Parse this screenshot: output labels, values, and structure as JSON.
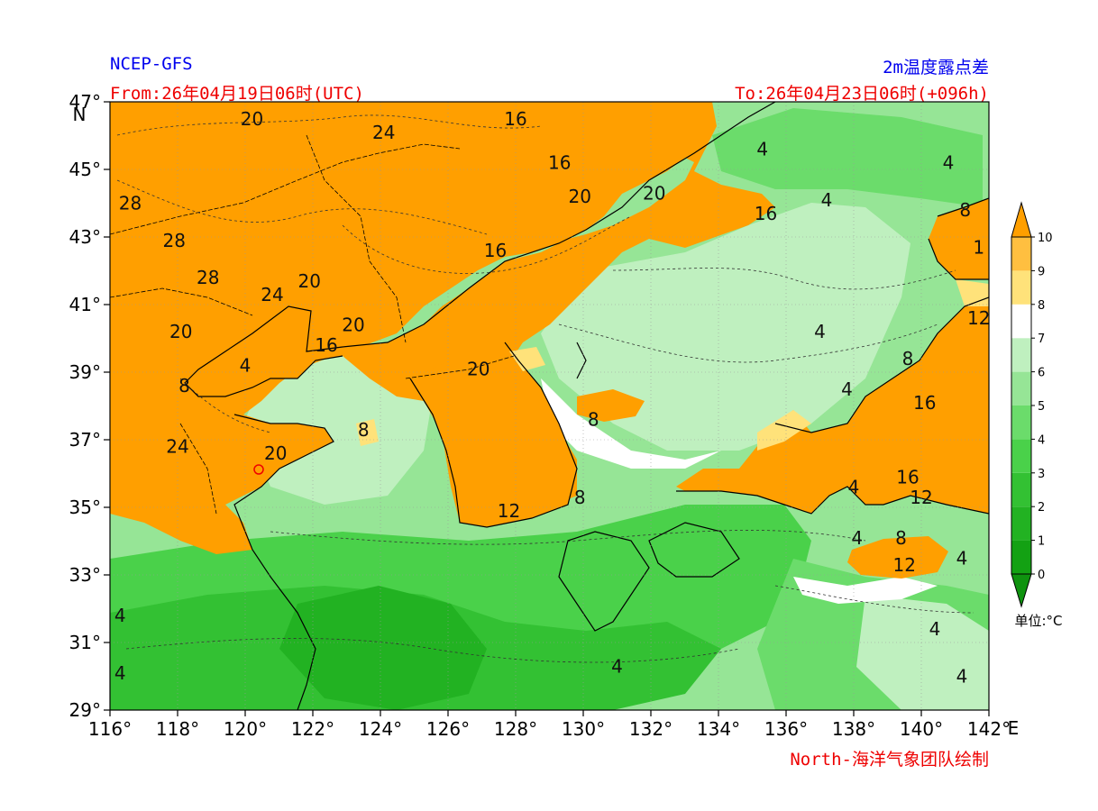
{
  "header": {
    "model": "NCEP-GFS",
    "from": "From:26年04月19日06时(UTC)",
    "variable": "2m温度露点差",
    "to": "To:26年04月23日06时(+096h)"
  },
  "footer": {
    "credit": "North-海洋气象团队绘制"
  },
  "map": {
    "lon_range": [
      116,
      142
    ],
    "lat_range": [
      29,
      47
    ],
    "lon_ticks": [
      "116°",
      "118°",
      "120°",
      "122°",
      "124°",
      "126°",
      "128°",
      "130°",
      "132°",
      "134°",
      "136°",
      "138°",
      "140°",
      "142°"
    ],
    "lon_tick_values": [
      116,
      118,
      120,
      122,
      124,
      126,
      128,
      130,
      132,
      134,
      136,
      138,
      140,
      142
    ],
    "lat_ticks": [
      "47°",
      "45°",
      "43°",
      "41°",
      "39°",
      "37°",
      "35°",
      "33°",
      "31°",
      "29°"
    ],
    "lat_tick_values": [
      47,
      45,
      43,
      41,
      39,
      37,
      35,
      33,
      31,
      29
    ],
    "lon_unit": "E",
    "lat_unit": "N",
    "contour_labels": [
      {
        "text": "20",
        "lon": 120.2,
        "lat": 46.5
      },
      {
        "text": "24",
        "lon": 124.1,
        "lat": 46.1
      },
      {
        "text": "16",
        "lon": 128.0,
        "lat": 46.5
      },
      {
        "text": "16",
        "lon": 129.3,
        "lat": 45.2
      },
      {
        "text": "20",
        "lon": 129.9,
        "lat": 44.2
      },
      {
        "text": "20",
        "lon": 132.1,
        "lat": 44.3
      },
      {
        "text": "16",
        "lon": 135.4,
        "lat": 43.7
      },
      {
        "text": "28",
        "lon": 116.6,
        "lat": 44.0
      },
      {
        "text": "28",
        "lon": 117.9,
        "lat": 42.9
      },
      {
        "text": "16",
        "lon": 127.4,
        "lat": 42.6
      },
      {
        "text": "28",
        "lon": 118.9,
        "lat": 41.8
      },
      {
        "text": "24",
        "lon": 120.8,
        "lat": 41.3
      },
      {
        "text": "20",
        "lon": 121.9,
        "lat": 41.7
      },
      {
        "text": "20",
        "lon": 118.1,
        "lat": 40.2
      },
      {
        "text": "20",
        "lon": 123.2,
        "lat": 40.4
      },
      {
        "text": "16",
        "lon": 122.4,
        "lat": 39.8
      },
      {
        "text": "4",
        "lon": 120.0,
        "lat": 39.2
      },
      {
        "text": "20",
        "lon": 126.9,
        "lat": 39.1
      },
      {
        "text": "8",
        "lon": 118.2,
        "lat": 38.6
      },
      {
        "text": "8",
        "lon": 130.3,
        "lat": 37.6
      },
      {
        "text": "24",
        "lon": 118.0,
        "lat": 36.8
      },
      {
        "text": "8",
        "lon": 123.5,
        "lat": 37.3
      },
      {
        "text": "20",
        "lon": 120.9,
        "lat": 36.6
      },
      {
        "text": "12",
        "lon": 127.8,
        "lat": 34.9
      },
      {
        "text": "8",
        "lon": 129.9,
        "lat": 35.3
      },
      {
        "text": "4",
        "lon": 138.0,
        "lat": 35.6
      },
      {
        "text": "16",
        "lon": 139.6,
        "lat": 35.9
      },
      {
        "text": "12",
        "lon": 140.0,
        "lat": 35.3
      },
      {
        "text": "8",
        "lon": 139.4,
        "lat": 34.1
      },
      {
        "text": "4",
        "lon": 138.1,
        "lat": 34.1
      },
      {
        "text": "12",
        "lon": 139.5,
        "lat": 33.3
      },
      {
        "text": "4",
        "lon": 141.2,
        "lat": 33.5
      },
      {
        "text": "16",
        "lon": 140.1,
        "lat": 38.1
      },
      {
        "text": "8",
        "lon": 139.6,
        "lat": 39.4
      },
      {
        "text": "12",
        "lon": 141.7,
        "lat": 40.6
      },
      {
        "text": "4",
        "lon": 137.0,
        "lat": 40.2
      },
      {
        "text": "4",
        "lon": 137.8,
        "lat": 38.5
      },
      {
        "text": "4",
        "lon": 135.3,
        "lat": 45.6
      },
      {
        "text": "4",
        "lon": 137.2,
        "lat": 44.1
      },
      {
        "text": "4",
        "lon": 140.8,
        "lat": 45.2
      },
      {
        "text": "8",
        "lon": 141.3,
        "lat": 43.8
      },
      {
        "text": "1",
        "lon": 141.7,
        "lat": 42.7
      },
      {
        "text": "4",
        "lon": 140.4,
        "lat": 31.4
      },
      {
        "text": "4",
        "lon": 131.0,
        "lat": 30.3
      },
      {
        "text": "4",
        "lon": 116.3,
        "lat": 31.8
      },
      {
        "text": "4",
        "lon": 116.3,
        "lat": 30.1
      },
      {
        "text": "4",
        "lon": 141.2,
        "lat": 30.0
      }
    ]
  },
  "colorbar": {
    "levels": [
      "0",
      "1",
      "2",
      "3",
      "4",
      "5",
      "6",
      "7",
      "8",
      "9",
      "10"
    ],
    "colors": [
      "#13a113",
      "#22b222",
      "#33c133",
      "#4ad14a",
      "#6bdc6b",
      "#96e596",
      "#bff0bf",
      "#ffffff",
      "#ffe27a",
      "#ffbf40",
      "#ff9f00"
    ],
    "under_color": "#0f930f",
    "over_color": "#ff9f00",
    "unit_label": "单位:°C"
  }
}
